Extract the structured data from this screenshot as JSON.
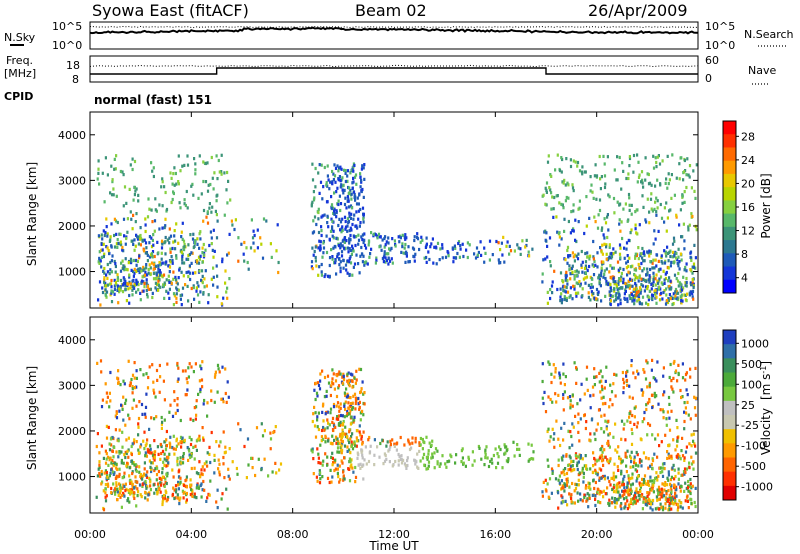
{
  "header": {
    "title": "Syowa East (fitACF)",
    "beam": "Beam 02",
    "date": "26/Apr/2009"
  },
  "strips": {
    "nsky_label": "N.Sky",
    "nsearch_label": "N.Search",
    "freq_label_1": "Freq.",
    "freq_label_2": "[MHz]",
    "nave_label": "Nave",
    "cpid_label": "CPID",
    "cpid_value": "normal (fast) 151",
    "noise_left_ticks": [
      "10^5",
      "10^0"
    ],
    "noise_right_ticks": [
      "10^5",
      "10^0"
    ],
    "freq_left_ticks": [
      "18",
      "8"
    ],
    "freq_right_ticks": [
      "60",
      "0"
    ]
  },
  "chart_data": [
    {
      "type": "heatmap",
      "panel": "power",
      "ylabel": "Slant Range [km]",
      "yticks": [
        "1000",
        "2000",
        "3000",
        "4000"
      ],
      "ylim": [
        200,
        4500
      ],
      "xlim_hours": [
        0,
        24
      ],
      "colorbar_label": "Power [dB]",
      "colorbar_ticks": [
        "28",
        "24",
        "20",
        "16",
        "12",
        "8",
        "4"
      ],
      "colorbar_colors": [
        "#ff0000",
        "#ff3000",
        "#ff6a00",
        "#ff9a00",
        "#e8c800",
        "#b8d400",
        "#86d040",
        "#58b86a",
        "#3c9478",
        "#2c7890",
        "#1e5ab8",
        "#1436d8",
        "#0000ff"
      ]
    },
    {
      "type": "heatmap",
      "panel": "velocity",
      "ylabel": "Slant Range [km]",
      "yticks": [
        "1000",
        "2000",
        "3000",
        "4000"
      ],
      "ylim": [
        200,
        4500
      ],
      "xlim_hours": [
        0,
        24
      ],
      "xlabel": "Time UT",
      "xticks": [
        "00:00",
        "04:00",
        "08:00",
        "12:00",
        "16:00",
        "20:00",
        "00:00"
      ],
      "colorbar_label_1": "Velocity",
      "colorbar_label_2": "[m s",
      "colorbar_label_sup": "-1",
      "colorbar_label_3": "]",
      "colorbar_ticks": [
        "1000",
        "500",
        "100",
        "25",
        "-25",
        "-100",
        "-500",
        "-1000"
      ],
      "colorbar_colors": [
        "#1f3fbf",
        "#2f6fa8",
        "#3a8f5c",
        "#4caa3a",
        "#78c840",
        "#c0c0c0",
        "#c8c8b0",
        "#f0c000",
        "#ff9a00",
        "#ff6400",
        "#ff3000",
        "#e00000"
      ]
    }
  ]
}
